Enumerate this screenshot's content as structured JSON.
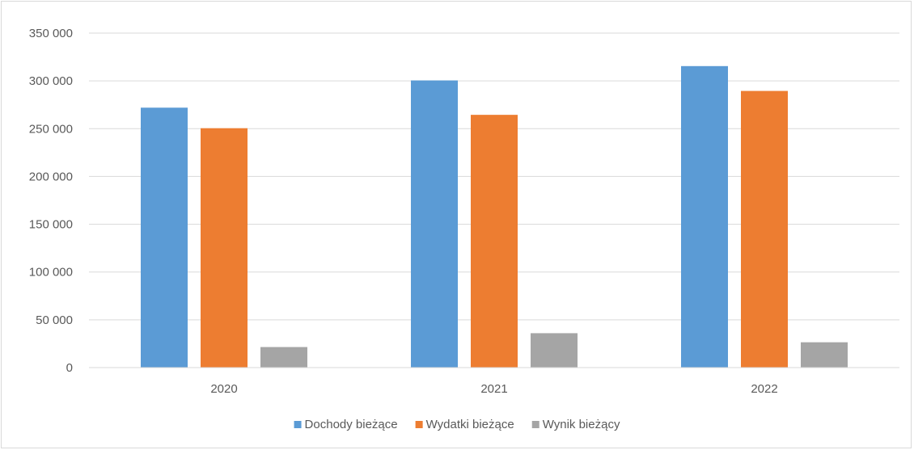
{
  "chart_data": {
    "type": "bar",
    "title": "",
    "xlabel": "",
    "ylabel": "",
    "categories": [
      "2020",
      "2021",
      "2022"
    ],
    "series": [
      {
        "name": "Dochody bieżące",
        "color": "#5b9bd5",
        "values": [
          272000,
          300500,
          315500
        ]
      },
      {
        "name": "Wydatki bieżące",
        "color": "#ed7d31",
        "values": [
          250500,
          264500,
          289500
        ]
      },
      {
        "name": "Wynik bieżący",
        "color": "#a5a5a5",
        "values": [
          21500,
          36000,
          26500
        ]
      }
    ],
    "ylim": [
      0,
      350000
    ],
    "yticks": [
      0,
      50000,
      100000,
      150000,
      200000,
      250000,
      300000,
      350000
    ],
    "ytick_labels": [
      "0",
      "50 000",
      "100 000",
      "150 000",
      "200 000",
      "250 000",
      "300 000",
      "350 000"
    ],
    "grid": true,
    "legend_position": "bottom"
  }
}
